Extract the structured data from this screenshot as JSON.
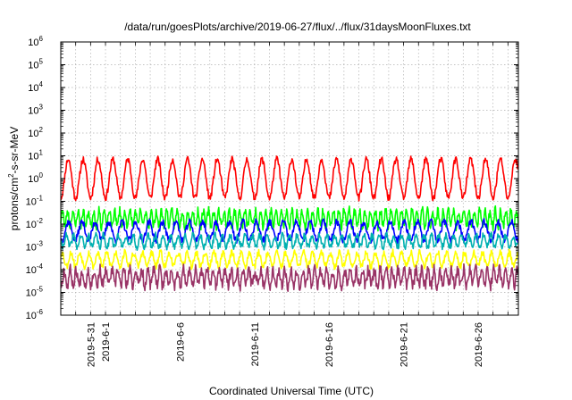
{
  "chart_data": {
    "type": "line",
    "title": "/data/run/goesPlots/archive/2019-06-27/flux/../flux/31daysMoonFluxes.txt",
    "xlabel": "Coordinated Universal Time (UTC)",
    "ylabel_main": "protons/cm",
    "ylabel_sup": "2",
    "ylabel_tail": "-s-sr-MeV",
    "x_range_days": [
      -2,
      28.7
    ],
    "x_reference_date": "2019-5-31",
    "ylim_log10": [
      -6,
      6
    ],
    "y_scale": "log",
    "grid": true,
    "y_ticks": [
      {
        "base": "10",
        "exp": "6"
      },
      {
        "base": "10",
        "exp": "5"
      },
      {
        "base": "10",
        "exp": "4"
      },
      {
        "base": "10",
        "exp": "3"
      },
      {
        "base": "10",
        "exp": "2"
      },
      {
        "base": "10",
        "exp": "1"
      },
      {
        "base": "10",
        "exp": "0"
      },
      {
        "base": "10",
        "exp": "-1"
      },
      {
        "base": "10",
        "exp": "-2"
      },
      {
        "base": "10",
        "exp": "-3"
      },
      {
        "base": "10",
        "exp": "-4"
      },
      {
        "base": "10",
        "exp": "-5"
      },
      {
        "base": "10",
        "exp": "-6"
      }
    ],
    "x_ticks": [
      {
        "label": "2019-5-31",
        "day": 0
      },
      {
        "label": "2019-6-1",
        "day": 1
      },
      {
        "label": "2019-6-6",
        "day": 6
      },
      {
        "label": "2019-6-11",
        "day": 11
      },
      {
        "label": "2019-6-16",
        "day": 16
      },
      {
        "label": "2019-6-21",
        "day": 21
      },
      {
        "label": "2019-6-26",
        "day": 26
      }
    ],
    "series": [
      {
        "color": "#ff0000",
        "baseline_log10": 0.0,
        "amplitude": 0.85,
        "noise": 0.15,
        "period_days": 1.0,
        "seed": 11
      },
      {
        "color": "#00ff00",
        "baseline_log10": -1.75,
        "amplitude": 0.35,
        "noise": 0.2,
        "period_days": 0.35,
        "seed": 23
      },
      {
        "color": "#0000ff",
        "baseline_log10": -2.3,
        "amplitude": 0.4,
        "noise": 0.15,
        "period_days": 0.9,
        "seed": 37
      },
      {
        "color": "#00b0b0",
        "baseline_log10": -2.75,
        "amplitude": 0.25,
        "noise": 0.15,
        "period_days": 0.5,
        "seed": 41
      },
      {
        "color": "#ffff00",
        "baseline_log10": -3.55,
        "amplitude": 0.3,
        "noise": 0.15,
        "period_days": 0.6,
        "seed": 53
      },
      {
        "color": "#993366",
        "baseline_log10": -4.35,
        "amplitude": 0.35,
        "noise": 0.25,
        "period_days": 0.4,
        "seed": 67
      }
    ]
  }
}
